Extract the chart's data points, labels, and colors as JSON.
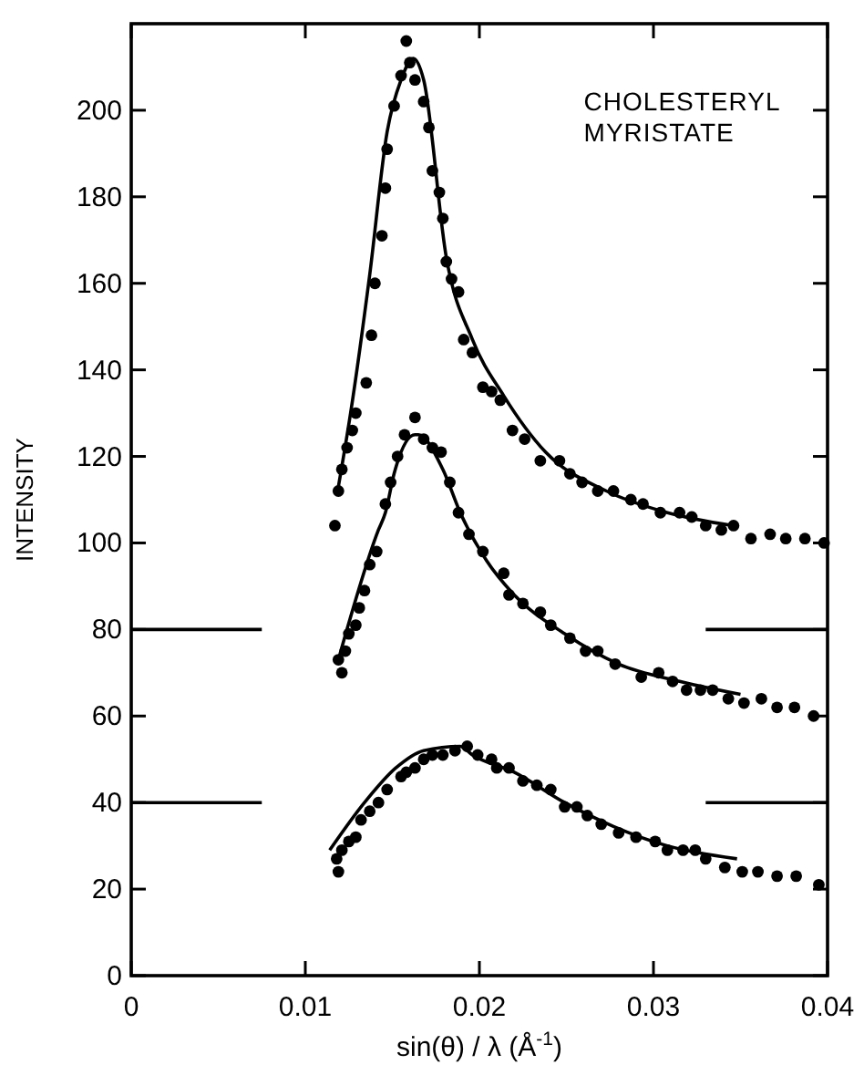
{
  "chart_data": {
    "type": "scatter",
    "title": "CHOLESTERYL MYRISTATE",
    "xlabel": "sin(θ) / λ  (Å$^{-1}$)",
    "ylabel": "INTENSITY",
    "xlim": [
      0,
      0.04
    ],
    "ylim": [
      0,
      220
    ],
    "xticks": [
      0,
      0.01,
      0.02,
      0.03,
      0.04
    ],
    "yticks": [
      0,
      20,
      40,
      60,
      80,
      100,
      120,
      140,
      160,
      180,
      200
    ],
    "grid": false,
    "series": [
      {
        "marker": "circle",
        "color": "#000000",
        "x": [
          0.0117,
          0.0119,
          0.0121,
          0.0124,
          0.0127,
          0.0129,
          0.0135,
          0.0138,
          0.014,
          0.0144,
          0.0146,
          0.0147,
          0.0151,
          0.0155,
          0.0158,
          0.016,
          0.0163,
          0.0168,
          0.0171,
          0.0173,
          0.0177,
          0.0179,
          0.0181,
          0.0184,
          0.0188,
          0.0191,
          0.0196,
          0.0202,
          0.0207,
          0.0212,
          0.0219,
          0.0226,
          0.0235,
          0.0246,
          0.0252,
          0.0259,
          0.0268,
          0.0277,
          0.0287,
          0.0294,
          0.0304,
          0.0315,
          0.0322,
          0.033,
          0.0339,
          0.0346,
          0.0356,
          0.0367,
          0.0376,
          0.0387,
          0.0398
        ],
        "values": [
          104,
          112,
          117,
          122,
          126,
          130,
          137,
          148,
          160,
          171,
          182,
          191,
          201,
          208,
          216,
          211,
          207,
          202,
          196,
          186,
          181,
          175,
          165,
          161,
          158,
          147,
          144,
          136,
          135,
          133,
          126,
          124,
          119,
          119,
          116,
          114,
          112,
          112,
          110,
          109,
          107,
          107,
          106,
          104,
          103,
          104,
          101,
          102,
          101,
          101,
          100
        ]
      },
      {
        "type": "line",
        "color": "#000000",
        "x": [
          0.0119,
          0.0126,
          0.0137,
          0.0147,
          0.0155,
          0.0162,
          0.0168,
          0.0181,
          0.0196,
          0.0214,
          0.0238,
          0.0273,
          0.0308,
          0.0346
        ],
        "values": [
          113,
          130,
          162,
          195,
          207,
          212,
          207,
          166,
          147,
          134,
          121,
          112,
          107,
          104
        ]
      },
      {
        "marker": "circle",
        "color": "#000000",
        "x": [
          0.0121,
          0.0119,
          0.0123,
          0.0125,
          0.0129,
          0.0131,
          0.0134,
          0.0137,
          0.0141,
          0.0146,
          0.0149,
          0.0153,
          0.0157,
          0.0163,
          0.0168,
          0.0173,
          0.0178,
          0.0183,
          0.0188,
          0.0194,
          0.0202,
          0.0214,
          0.0217,
          0.0225,
          0.0235,
          0.0241,
          0.0252,
          0.0261,
          0.0268,
          0.0278,
          0.0293,
          0.0303,
          0.0311,
          0.0319,
          0.0327,
          0.0334,
          0.0343,
          0.0352,
          0.0362,
          0.0371,
          0.0381,
          0.0392
        ],
        "values": [
          70,
          73,
          75,
          79,
          81,
          85,
          89,
          95,
          98,
          109,
          114,
          120,
          125,
          129,
          124,
          122,
          121,
          114,
          107,
          102,
          98,
          93,
          88,
          86,
          84,
          81,
          78,
          75,
          75,
          72,
          69,
          70,
          68,
          66,
          66,
          66,
          64,
          63,
          64,
          62,
          62,
          60
        ]
      },
      {
        "type": "line",
        "color": "#000000",
        "x": [
          0.0119,
          0.0142,
          0.0146,
          0.0151,
          0.0163,
          0.0165,
          0.0179,
          0.0189,
          0.0204,
          0.022,
          0.0249,
          0.028,
          0.0315,
          0.035
        ],
        "values": [
          73,
          103,
          107,
          116,
          125,
          125,
          117,
          107,
          96,
          88,
          79,
          72,
          68,
          65
        ]
      },
      {
        "marker": "circle",
        "color": "#000000",
        "x": [
          0.0119,
          0.0118,
          0.0121,
          0.0125,
          0.0129,
          0.0132,
          0.0137,
          0.0142,
          0.0147,
          0.0155,
          0.0158,
          0.0163,
          0.0168,
          0.0173,
          0.0179,
          0.0186,
          0.0193,
          0.0199,
          0.0207,
          0.021,
          0.0217,
          0.0225,
          0.0233,
          0.0241,
          0.0249,
          0.0256,
          0.0262,
          0.027,
          0.028,
          0.029,
          0.0301,
          0.0308,
          0.0317,
          0.0324,
          0.033,
          0.0341,
          0.0351,
          0.036,
          0.0371,
          0.0382,
          0.0395
        ],
        "values": [
          24,
          27,
          29,
          31,
          32,
          36,
          38,
          40,
          43,
          46,
          47,
          48,
          50,
          51,
          51,
          52,
          53,
          51,
          50,
          48,
          48,
          45,
          44,
          43,
          39,
          39,
          37,
          35,
          33,
          32,
          31,
          29,
          29,
          29,
          27,
          25,
          24,
          24,
          23,
          23,
          21
        ]
      },
      {
        "type": "line",
        "color": "#000000",
        "x": [
          0.0114,
          0.0134,
          0.0152,
          0.0168,
          0.0189,
          0.0196,
          0.022,
          0.0249,
          0.0277,
          0.0308,
          0.0348
        ],
        "values": [
          29,
          40,
          48,
          52,
          53,
          51,
          47,
          40,
          34.5,
          30,
          27
        ]
      },
      {
        "type": "line",
        "color": "#000000",
        "x": [
          0,
          0.0075,
          0.02,
          0.033,
          0.04
        ],
        "values": [
          80,
          80,
          null,
          80,
          80
        ]
      },
      {
        "type": "line",
        "color": "#000000",
        "x": [
          0,
          0.0075,
          0.02,
          0.033,
          0.04
        ],
        "values": [
          40,
          40,
          null,
          40,
          40
        ]
      }
    ]
  }
}
